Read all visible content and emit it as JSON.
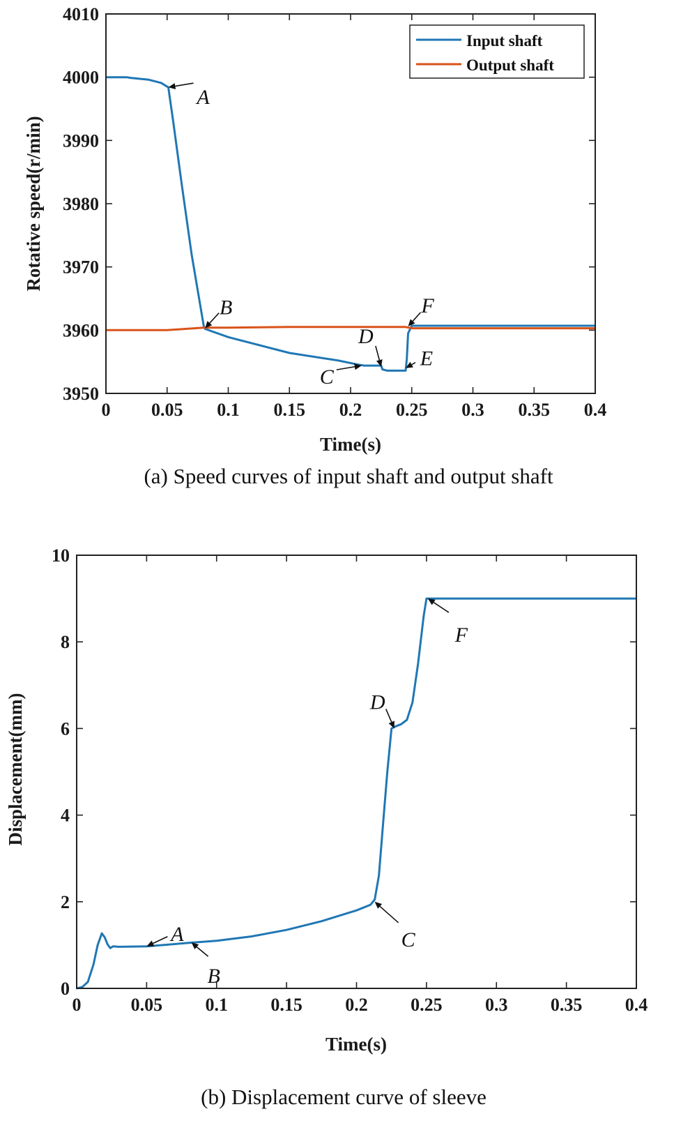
{
  "chart_data": [
    {
      "type": "line",
      "id": "a",
      "caption": "(a) Speed curves of input shaft and output shaft",
      "xlabel": "Time(s)",
      "ylabel": "Rotative speed(r/min)",
      "xlim": [
        0,
        0.4
      ],
      "ylim": [
        3950,
        4010
      ],
      "xticks": [
        0,
        0.05,
        0.1,
        0.15,
        0.2,
        0.25,
        0.3,
        0.35,
        0.4
      ],
      "xtick_labels": [
        "0",
        "0.05",
        "0.1",
        "0.15",
        "0.2",
        "0.25",
        "0.3",
        "0.35",
        "0.4"
      ],
      "yticks": [
        3950,
        3960,
        3970,
        3980,
        3990,
        4000,
        4010
      ],
      "ytick_labels": [
        "3950",
        "3960",
        "3970",
        "3980",
        "3990",
        "4000",
        "4010"
      ],
      "grid": false,
      "legend": "top-right",
      "series": [
        {
          "name": "Input shaft",
          "color": "#1f77b4",
          "x": [
            0,
            0.017,
            0.02,
            0.035,
            0.045,
            0.051,
            0.055,
            0.062,
            0.07,
            0.08,
            0.081,
            0.1,
            0.15,
            0.19,
            0.205,
            0.211,
            0.22,
            0.225,
            0.226,
            0.23,
            0.24,
            0.245,
            0.246,
            0.247,
            0.25,
            0.3,
            0.35,
            0.4
          ],
          "y": [
            4000,
            4000,
            3999.9,
            3999.6,
            3999.1,
            3998.4,
            3993,
            3983,
            3972,
            3960.6,
            3960.2,
            3958.9,
            3956.4,
            3955.2,
            3954.6,
            3954.4,
            3954.4,
            3954.4,
            3953.8,
            3953.6,
            3953.6,
            3953.6,
            3955.5,
            3959.5,
            3960.7,
            3960.7,
            3960.7,
            3960.7
          ]
        },
        {
          "name": "Output shaft",
          "color": "#d95319",
          "x": [
            0,
            0.05,
            0.065,
            0.08,
            0.1,
            0.15,
            0.2,
            0.245,
            0.25,
            0.3,
            0.35,
            0.4
          ],
          "y": [
            3960,
            3960,
            3960.2,
            3960.4,
            3960.4,
            3960.5,
            3960.5,
            3960.5,
            3960.3,
            3960.3,
            3960.3,
            3960.3
          ]
        }
      ],
      "annotations": [
        {
          "label": "A",
          "x": 0.051,
          "y": 3998.4
        },
        {
          "label": "B",
          "x": 0.081,
          "y": 3960.3
        },
        {
          "label": "C",
          "x": 0.209,
          "y": 3954.4
        },
        {
          "label": "D",
          "x": 0.225,
          "y": 3954.2
        },
        {
          "label": "E",
          "x": 0.245,
          "y": 3954.0
        },
        {
          "label": "F",
          "x": 0.247,
          "y": 3960.6
        }
      ]
    },
    {
      "type": "line",
      "id": "b",
      "caption": "(b) Displacement curve of sleeve",
      "xlabel": "Time(s)",
      "ylabel": "Displacement(mm)",
      "xlim": [
        0,
        0.4
      ],
      "ylim": [
        0,
        10
      ],
      "xticks": [
        0,
        0.05,
        0.1,
        0.15,
        0.2,
        0.25,
        0.3,
        0.35,
        0.4
      ],
      "xtick_labels": [
        "0",
        "0.05",
        "0.1",
        "0.15",
        "0.2",
        "0.25",
        "0.3",
        "0.35",
        "0.4"
      ],
      "yticks": [
        0,
        2,
        4,
        6,
        8,
        10
      ],
      "ytick_labels": [
        "0",
        "2",
        "4",
        "6",
        "8",
        "10"
      ],
      "grid": false,
      "series": [
        {
          "color": "#1f77b4",
          "x": [
            0,
            0.004,
            0.008,
            0.012,
            0.015,
            0.018,
            0.02,
            0.022,
            0.024,
            0.026,
            0.03,
            0.05,
            0.08,
            0.1,
            0.125,
            0.15,
            0.175,
            0.2,
            0.21,
            0.213,
            0.216,
            0.219,
            0.222,
            0.225,
            0.228,
            0.232,
            0.236,
            0.24,
            0.244,
            0.248,
            0.25,
            0.26,
            0.3,
            0.35,
            0.4
          ],
          "y": [
            0,
            0.03,
            0.15,
            0.55,
            1.0,
            1.27,
            1.18,
            1.02,
            0.93,
            0.97,
            0.96,
            0.97,
            1.05,
            1.1,
            1.2,
            1.35,
            1.55,
            1.8,
            1.93,
            2.05,
            2.6,
            3.8,
            5.0,
            6.0,
            6.05,
            6.1,
            6.2,
            6.6,
            7.5,
            8.6,
            9.0,
            9.0,
            9.0,
            9.0,
            9.0
          ]
        }
      ],
      "annotations": [
        {
          "label": "A",
          "x": 0.05,
          "y": 0.97
        },
        {
          "label": "B",
          "x": 0.082,
          "y": 1.06
        },
        {
          "label": "C",
          "x": 0.213,
          "y": 2.0
        },
        {
          "label": "D",
          "x": 0.227,
          "y": 6.0
        },
        {
          "label": "F",
          "x": 0.251,
          "y": 9.0
        }
      ]
    }
  ]
}
